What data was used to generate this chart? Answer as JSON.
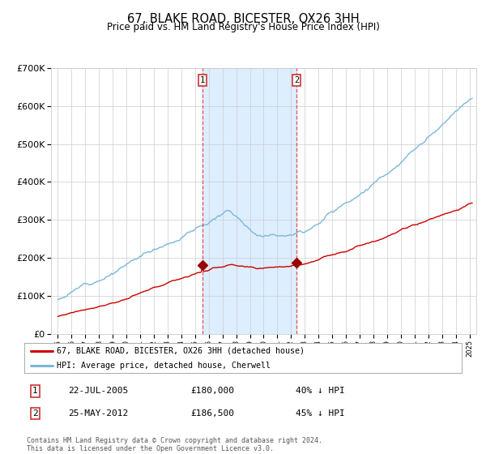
{
  "title": "67, BLAKE ROAD, BICESTER, OX26 3HH",
  "subtitle": "Price paid vs. HM Land Registry's House Price Index (HPI)",
  "legend_line1": "67, BLAKE ROAD, BICESTER, OX26 3HH (detached house)",
  "legend_line2": "HPI: Average price, detached house, Cherwell",
  "note1_date": "22-JUL-2005",
  "note1_price": "£180,000",
  "note1_hpi": "40% ↓ HPI",
  "note2_date": "25-MAY-2012",
  "note2_price": "£186,500",
  "note2_hpi": "45% ↓ HPI",
  "footnote": "Contains HM Land Registry data © Crown copyright and database right 2024.\nThis data is licensed under the Open Government Licence v3.0.",
  "hpi_color": "#7ab8d9",
  "price_color": "#cc0000",
  "marker_color": "#990000",
  "vline_color": "#dd4444",
  "shade_color": "#ddeeff",
  "grid_color": "#cccccc",
  "background_color": "#ffffff",
  "sale1_x": 2005.55,
  "sale1_y": 180000,
  "sale2_x": 2012.39,
  "sale2_y": 186500,
  "ylim": [
    0,
    700000
  ],
  "xlim_start": 1994.5,
  "xlim_end": 2025.5,
  "hpi_seed": 12,
  "price_seed": 77
}
